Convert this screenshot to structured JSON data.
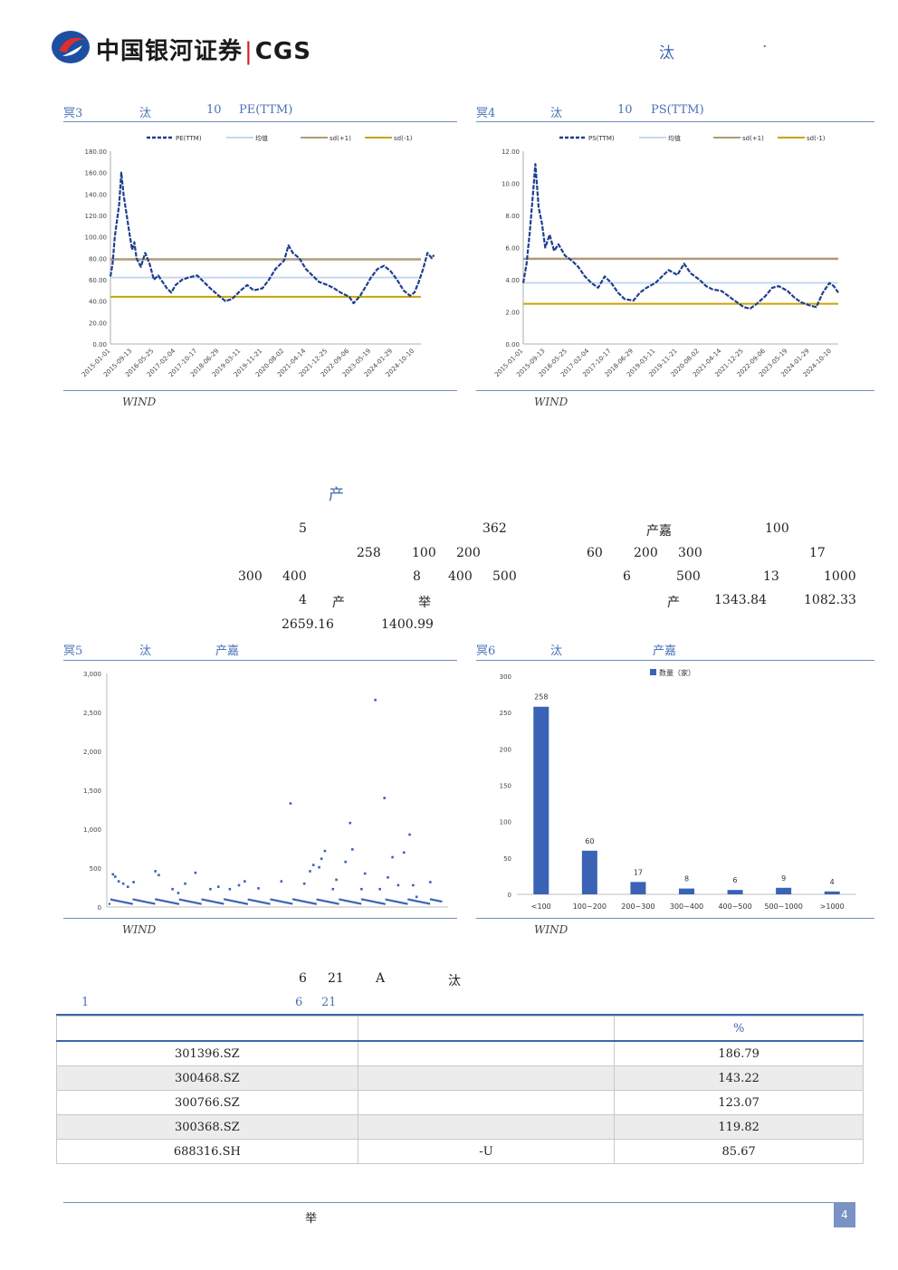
{
  "header": {
    "logo_text": "中国银河证券",
    "logo_sep": "|",
    "logo_en": "CGS",
    "right_char1": "汰",
    "right_char2": "·"
  },
  "fig3": {
    "label": "冥3",
    "t1": "汰",
    "t2": "10",
    "t3": "PE(TTM)",
    "source": "WIND"
  },
  "fig4": {
    "label": "冥4",
    "t1": "汰",
    "t2": "10",
    "t3": "PS(TTM)",
    "source": "WIND"
  },
  "fig5": {
    "label": "冥5",
    "t1": "汰",
    "t2": "产嘉",
    "source": "WIND"
  },
  "fig6": {
    "label": "冥6",
    "t1": "汰",
    "t2": "产嘉",
    "source": "WIND"
  },
  "section": {
    "title": "产"
  },
  "paragraph": {
    "r1": [
      "5",
      "362",
      "产嘉",
      "100"
    ],
    "r2": [
      "258",
      "100",
      "200",
      "60",
      "200",
      "300",
      "17"
    ],
    "r3": [
      "300",
      "400",
      "8",
      "400",
      "500",
      "6",
      "500",
      "13",
      "1000"
    ],
    "r4": [
      "4",
      "产",
      "举",
      "产",
      "1343.84",
      "1082.33"
    ],
    "r5": [
      "2659.16",
      "1400.99"
    ]
  },
  "table_intro": {
    "line1": [
      "6",
      "21",
      "A",
      "汰"
    ],
    "line2": [
      "1",
      "6",
      "21"
    ]
  },
  "table": {
    "header": [
      "",
      "",
      "%"
    ],
    "rows": [
      [
        "301396.SZ",
        "",
        "186.79"
      ],
      [
        "300468.SZ",
        "",
        "143.22"
      ],
      [
        "300766.SZ",
        "",
        "123.07"
      ],
      [
        "300368.SZ",
        "",
        "119.82"
      ],
      [
        "688316.SH",
        "-U",
        "85.67"
      ]
    ]
  },
  "footer": {
    "text": "举",
    "page": "4"
  },
  "colors": {
    "navy": "#1f3e8e",
    "mean": "#c5d9ee",
    "sd_plus": "#b09a78",
    "sd_minus": "#c9a400",
    "bar": "#3a63b5"
  },
  "chart_data": [
    {
      "type": "line",
      "id": "pe",
      "legend": [
        "PE(TTM)",
        "均值",
        "sd(+1)",
        "sd(-1)"
      ],
      "legend_position": "top",
      "y_ticks": [
        "180.00",
        "160.00",
        "140.00",
        "120.00",
        "100.00",
        "80.00",
        "60.00",
        "40.00",
        "20.00",
        "0.00"
      ],
      "ylim": [
        0,
        180
      ],
      "x_ticks": [
        "2015-01-01",
        "2015-09-13",
        "2016-05-25",
        "2017-02-04",
        "2017-10-17",
        "2018-06-29",
        "2019-03-11",
        "2019-11-21",
        "2020-08-02",
        "2021-04-14",
        "2021-12-25",
        "2022-09-06",
        "2023-05-19",
        "2024-01-29",
        "2024-10-10"
      ],
      "mean": 62,
      "sd_plus": 79,
      "sd_minus": 44,
      "series_points": [
        [
          0,
          63
        ],
        [
          0.1,
          75
        ],
        [
          0.2,
          100
        ],
        [
          0.3,
          115
        ],
        [
          0.4,
          130
        ],
        [
          0.5,
          160
        ],
        [
          0.6,
          140
        ],
        [
          0.75,
          120
        ],
        [
          0.9,
          100
        ],
        [
          1.0,
          88
        ],
        [
          1.1,
          95
        ],
        [
          1.2,
          80
        ],
        [
          1.4,
          72
        ],
        [
          1.6,
          85
        ],
        [
          1.8,
          75
        ],
        [
          2.0,
          60
        ],
        [
          2.2,
          64
        ],
        [
          2.4,
          58
        ],
        [
          2.6,
          52
        ],
        [
          2.8,
          48
        ],
        [
          3.0,
          55
        ],
        [
          3.3,
          60
        ],
        [
          3.6,
          62
        ],
        [
          4.0,
          64
        ],
        [
          4.3,
          58
        ],
        [
          4.6,
          52
        ],
        [
          5.0,
          45
        ],
        [
          5.3,
          40
        ],
        [
          5.6,
          42
        ],
        [
          6.0,
          50
        ],
        [
          6.3,
          55
        ],
        [
          6.6,
          50
        ],
        [
          7.0,
          52
        ],
        [
          7.3,
          60
        ],
        [
          7.6,
          70
        ],
        [
          8.0,
          78
        ],
        [
          8.2,
          92
        ],
        [
          8.4,
          85
        ],
        [
          8.7,
          80
        ],
        [
          9.0,
          70
        ],
        [
          9.3,
          64
        ],
        [
          9.6,
          58
        ],
        [
          10.0,
          55
        ],
        [
          10.3,
          52
        ],
        [
          10.6,
          48
        ],
        [
          11.0,
          44
        ],
        [
          11.2,
          38
        ],
        [
          11.5,
          45
        ],
        [
          11.8,
          55
        ],
        [
          12.0,
          62
        ],
        [
          12.3,
          70
        ],
        [
          12.6,
          73
        ],
        [
          12.9,
          68
        ],
        [
          13.2,
          60
        ],
        [
          13.5,
          50
        ],
        [
          13.8,
          45
        ],
        [
          14.0,
          48
        ],
        [
          14.2,
          58
        ],
        [
          14.4,
          70
        ],
        [
          14.6,
          85
        ],
        [
          14.8,
          80
        ],
        [
          14.9,
          83
        ]
      ]
    },
    {
      "type": "line",
      "id": "ps",
      "legend": [
        "PS(TTM)",
        "均值",
        "sd(+1)",
        "sd(-1)"
      ],
      "legend_position": "top",
      "y_ticks": [
        "12.00",
        "10.00",
        "8.00",
        "6.00",
        "4.00",
        "2.00",
        "0.00"
      ],
      "ylim": [
        0,
        12
      ],
      "x_ticks": [
        "2015-01-01",
        "2015-09-13",
        "2016-05-25",
        "2017-02-04",
        "2017-10-17",
        "2018-06-29",
        "2019-03-11",
        "2019-11-21",
        "2020-08-02",
        "2021-04-14",
        "2021-12-25",
        "2022-09-06",
        "2023-05-19",
        "2024-01-29",
        "2024-10-10"
      ],
      "mean": 3.8,
      "sd_plus": 5.3,
      "sd_minus": 2.5,
      "series_points": [
        [
          0,
          3.8
        ],
        [
          0.15,
          5.0
        ],
        [
          0.3,
          7.0
        ],
        [
          0.45,
          9.5
        ],
        [
          0.55,
          11.2
        ],
        [
          0.7,
          8.5
        ],
        [
          0.85,
          7.5
        ],
        [
          1.0,
          6.0
        ],
        [
          1.2,
          6.8
        ],
        [
          1.4,
          5.8
        ],
        [
          1.6,
          6.2
        ],
        [
          1.9,
          5.5
        ],
        [
          2.2,
          5.2
        ],
        [
          2.5,
          4.8
        ],
        [
          2.8,
          4.2
        ],
        [
          3.1,
          3.8
        ],
        [
          3.4,
          3.5
        ],
        [
          3.7,
          4.2
        ],
        [
          4.0,
          3.8
        ],
        [
          4.3,
          3.2
        ],
        [
          4.6,
          2.8
        ],
        [
          5.0,
          2.7
        ],
        [
          5.3,
          3.2
        ],
        [
          5.6,
          3.5
        ],
        [
          6.0,
          3.8
        ],
        [
          6.3,
          4.2
        ],
        [
          6.6,
          4.6
        ],
        [
          7.0,
          4.3
        ],
        [
          7.3,
          5.0
        ],
        [
          7.6,
          4.4
        ],
        [
          8.0,
          4.0
        ],
        [
          8.3,
          3.6
        ],
        [
          8.6,
          3.4
        ],
        [
          9.0,
          3.3
        ],
        [
          9.3,
          3.0
        ],
        [
          9.6,
          2.7
        ],
        [
          10.0,
          2.3
        ],
        [
          10.3,
          2.2
        ],
        [
          10.6,
          2.5
        ],
        [
          11.0,
          3.0
        ],
        [
          11.3,
          3.5
        ],
        [
          11.6,
          3.6
        ],
        [
          12.0,
          3.3
        ],
        [
          12.3,
          2.9
        ],
        [
          12.6,
          2.6
        ],
        [
          13.0,
          2.4
        ],
        [
          13.3,
          2.3
        ],
        [
          13.6,
          3.2
        ],
        [
          13.9,
          3.8
        ],
        [
          14.1,
          3.6
        ],
        [
          14.3,
          3.2
        ]
      ]
    },
    {
      "type": "scatter",
      "id": "scatter",
      "y_ticks": [
        "3,000",
        "2,500",
        "2,000",
        "1,500",
        "1,000",
        "500",
        "0"
      ],
      "ylim": [
        0,
        3000
      ],
      "points": [
        [
          3,
          420
        ],
        [
          5,
          390
        ],
        [
          8,
          330
        ],
        [
          12,
          300
        ],
        [
          16,
          260
        ],
        [
          21,
          320
        ],
        [
          40,
          460
        ],
        [
          43,
          410
        ],
        [
          55,
          230
        ],
        [
          60,
          180
        ],
        [
          66,
          300
        ],
        [
          75,
          440
        ],
        [
          88,
          230
        ],
        [
          95,
          260
        ],
        [
          105,
          230
        ],
        [
          113,
          280
        ],
        [
          118,
          330
        ],
        [
          130,
          240
        ],
        [
          150,
          330
        ],
        [
          158,
          1330
        ],
        [
          170,
          300
        ],
        [
          175,
          460
        ],
        [
          178,
          540
        ],
        [
          183,
          510
        ],
        [
          185,
          620
        ],
        [
          188,
          720
        ],
        [
          195,
          230
        ],
        [
          198,
          350
        ],
        [
          206,
          580
        ],
        [
          210,
          1080
        ],
        [
          212,
          740
        ],
        [
          220,
          230
        ],
        [
          223,
          430
        ],
        [
          232,
          2660
        ],
        [
          236,
          230
        ],
        [
          240,
          1400
        ],
        [
          243,
          380
        ],
        [
          247,
          640
        ],
        [
          252,
          280
        ],
        [
          257,
          700
        ],
        [
          262,
          930
        ],
        [
          265,
          280
        ],
        [
          268,
          130
        ],
        [
          280,
          320
        ]
      ]
    },
    {
      "type": "bar",
      "id": "hist",
      "legend": [
        "数量（家）"
      ],
      "categories": [
        "<100",
        "100~200",
        "200~300",
        "300~400",
        "400~500",
        "500~1000",
        ">1000"
      ],
      "values": [
        258,
        60,
        17,
        8,
        6,
        9,
        4
      ],
      "y_ticks": [
        "300",
        "250",
        "200",
        "150",
        "100",
        "50",
        "0"
      ],
      "ylim": [
        0,
        300
      ]
    }
  ]
}
